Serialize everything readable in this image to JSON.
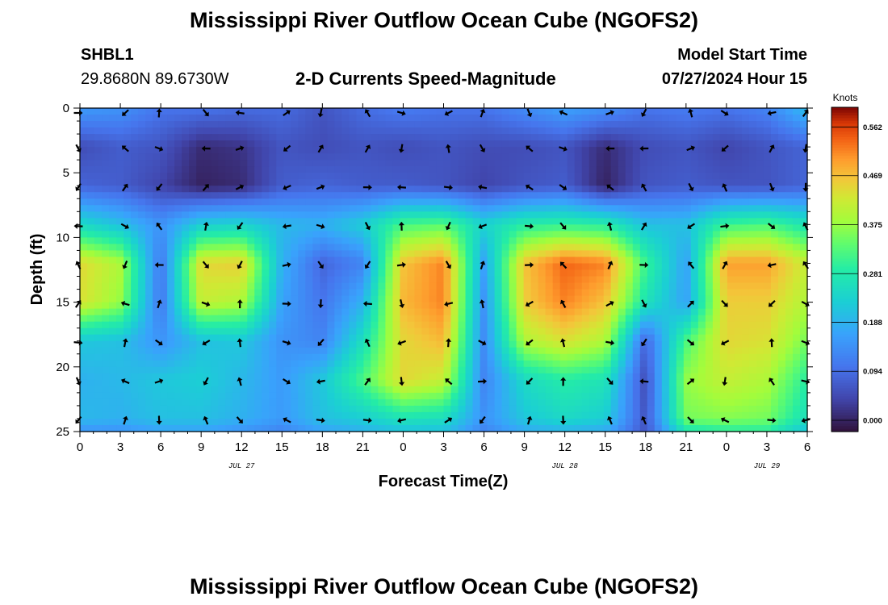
{
  "header": {
    "title": "Mississippi River Outflow Ocean Cube (NGOFS2)",
    "station_id": "SHBL1",
    "coords": "29.8680N  89.6730W",
    "subtitle": "2-D Currents Speed-Magnitude",
    "model_start_label": "Model Start Time",
    "model_start_value": "07/27/2024 Hour 15"
  },
  "footer": {
    "title": "Mississippi River Outflow Ocean Cube (NGOFS2)"
  },
  "chart_data": {
    "type": "heatmap",
    "title": "2-D Currents Speed-Magnitude",
    "xlabel": "Forecast Time(Z)",
    "ylabel": "Depth (ft)",
    "x_hours_range": [
      0,
      54
    ],
    "x_ticks": [
      "0",
      "3",
      "6",
      "9",
      "12",
      "15",
      "18",
      "21",
      "0",
      "3",
      "6",
      "9",
      "12",
      "15",
      "18",
      "21",
      "0",
      "3",
      "6"
    ],
    "date_labels": [
      {
        "text": "JUL 27",
        "at_tick": 4
      },
      {
        "text": "JUL 28",
        "at_tick": 12
      },
      {
        "text": "JUL 29",
        "at_tick": 17
      }
    ],
    "ylim": [
      0,
      25
    ],
    "y_inverted": true,
    "y_ticks": [
      0,
      5,
      10,
      15,
      20,
      25
    ],
    "colorbar": {
      "label": "Knots",
      "ticks": [
        "0.000",
        "0.094",
        "0.188",
        "0.281",
        "0.375",
        "0.469",
        "0.562"
      ],
      "range": [
        0,
        0.6
      ]
    },
    "speed_grid": {
      "columns_hours": [
        0,
        3,
        6,
        9,
        12,
        15,
        18,
        21,
        24,
        27,
        30,
        33,
        36,
        39,
        42,
        45,
        48,
        51,
        54
      ],
      "rows_depth_ft": [
        0,
        3,
        6,
        9,
        12,
        15,
        18,
        21,
        24,
        25
      ],
      "rows": [
        [
          0.17,
          0.16,
          0.12,
          0.12,
          0.11,
          0.11,
          0.08,
          0.11,
          0.13,
          0.12,
          0.12,
          0.15,
          0.18,
          0.16,
          0.12,
          0.13,
          0.12,
          0.14,
          0.22
        ],
        [
          0.07,
          0.09,
          0.08,
          0.03,
          0.04,
          0.08,
          0.07,
          0.08,
          0.07,
          0.08,
          0.07,
          0.07,
          0.08,
          0.03,
          0.07,
          0.08,
          0.06,
          0.08,
          0.1
        ],
        [
          0.1,
          0.09,
          0.06,
          0.02,
          0.03,
          0.09,
          0.1,
          0.09,
          0.09,
          0.08,
          0.06,
          0.08,
          0.09,
          0.02,
          0.08,
          0.09,
          0.08,
          0.08,
          0.1
        ],
        [
          0.26,
          0.22,
          0.16,
          0.24,
          0.25,
          0.21,
          0.2,
          0.24,
          0.33,
          0.34,
          0.25,
          0.3,
          0.31,
          0.3,
          0.22,
          0.22,
          0.32,
          0.33,
          0.28
        ],
        [
          0.45,
          0.4,
          0.12,
          0.45,
          0.46,
          0.2,
          0.1,
          0.14,
          0.47,
          0.52,
          0.18,
          0.47,
          0.54,
          0.52,
          0.32,
          0.18,
          0.5,
          0.5,
          0.42
        ],
        [
          0.44,
          0.38,
          0.12,
          0.42,
          0.4,
          0.18,
          0.12,
          0.2,
          0.48,
          0.52,
          0.16,
          0.46,
          0.52,
          0.47,
          0.28,
          0.18,
          0.46,
          0.46,
          0.4
        ],
        [
          0.23,
          0.22,
          0.16,
          0.22,
          0.23,
          0.16,
          0.14,
          0.27,
          0.45,
          0.48,
          0.15,
          0.4,
          0.44,
          0.4,
          0.1,
          0.33,
          0.45,
          0.44,
          0.36
        ],
        [
          0.2,
          0.21,
          0.23,
          0.24,
          0.21,
          0.17,
          0.23,
          0.33,
          0.45,
          0.42,
          0.14,
          0.26,
          0.3,
          0.28,
          0.07,
          0.38,
          0.42,
          0.4,
          0.3
        ],
        [
          0.21,
          0.2,
          0.22,
          0.22,
          0.2,
          0.17,
          0.22,
          0.24,
          0.28,
          0.27,
          0.16,
          0.23,
          0.26,
          0.24,
          0.08,
          0.36,
          0.37,
          0.36,
          0.27
        ],
        [
          0.16,
          0.16,
          0.18,
          0.18,
          0.16,
          0.14,
          0.18,
          0.2,
          0.22,
          0.22,
          0.14,
          0.19,
          0.2,
          0.19,
          0.08,
          0.28,
          0.3,
          0.3,
          0.22
        ]
      ]
    }
  }
}
